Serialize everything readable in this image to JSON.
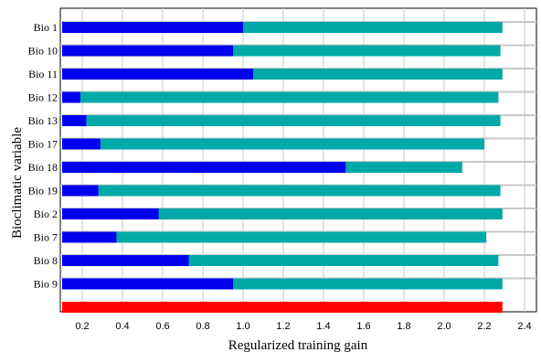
{
  "chart_data": {
    "type": "bar",
    "orientation": "horizontal",
    "xlabel": "Regularized training gain",
    "ylabel": "Bioclimatic variable",
    "xlim": [
      0.1,
      2.4
    ],
    "xticks": [
      "0.2",
      "0.4",
      "0.6",
      "0.8",
      "1.0",
      "1.2",
      "1.4",
      "1.6",
      "1.8",
      "2.0",
      "2.2",
      "2.4"
    ],
    "xtick_values": [
      0.2,
      0.4,
      0.6,
      0.8,
      1.0,
      1.2,
      1.4,
      1.6,
      1.8,
      2.0,
      2.2,
      2.4
    ],
    "grid": true,
    "categories": [
      "Bio 1",
      "Bio 10",
      "Bio 11",
      "Bio 12",
      "Bio 13",
      "Bio 17",
      "Bio 18",
      "Bio 19",
      "Bio 2",
      "Bio 7",
      "Bio 8",
      "Bio 9"
    ],
    "series": [
      {
        "key": "without",
        "color": "#00a8a8",
        "values": [
          2.29,
          2.28,
          2.29,
          2.27,
          2.28,
          2.2,
          2.09,
          2.28,
          2.29,
          2.21,
          2.27,
          2.29
        ]
      },
      {
        "key": "only",
        "color": "#0000ee",
        "values": [
          1.0,
          0.95,
          1.05,
          0.19,
          0.22,
          0.29,
          1.51,
          0.28,
          0.58,
          0.37,
          0.73,
          0.95
        ]
      }
    ],
    "all_value": 2.29,
    "all_color": "#ff0000"
  }
}
